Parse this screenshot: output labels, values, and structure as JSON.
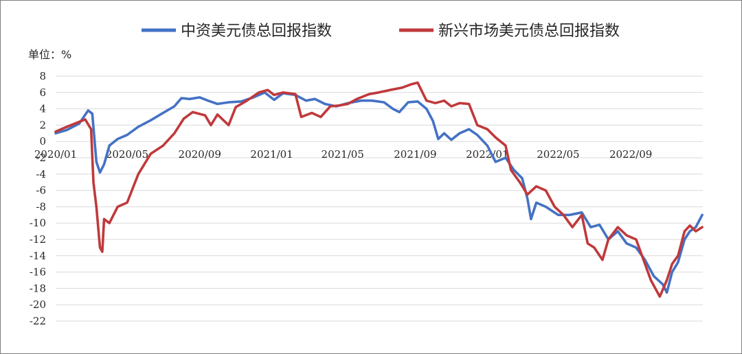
{
  "chart_data": {
    "type": "line",
    "unit_label": "单位：%",
    "ylim": [
      -22,
      8
    ],
    "yticks": [
      8,
      6,
      4,
      2,
      0,
      -2,
      -4,
      -6,
      -8,
      -10,
      -12,
      -14,
      -16,
      -18,
      -20,
      -22
    ],
    "x_tick_labels": [
      "2020/01",
      "2020/05",
      "2020/09",
      "2021/01",
      "2021/05",
      "2021/09",
      "2022/01",
      "2022/05",
      "2022/09"
    ],
    "x_range": [
      "2020-01",
      "2023-01"
    ],
    "grid": true,
    "legend_position": "top",
    "series": [
      {
        "name": "中资美元债总回报指数",
        "color": "#4472C4",
        "points": [
          [
            "2020-01-01",
            1.0
          ],
          [
            "2020-01-20",
            1.4
          ],
          [
            "2020-02-10",
            2.2
          ],
          [
            "2020-02-25",
            3.8
          ],
          [
            "2020-03-03",
            3.4
          ],
          [
            "2020-03-10",
            -2.5
          ],
          [
            "2020-03-16",
            -3.8
          ],
          [
            "2020-03-23",
            -2.8
          ],
          [
            "2020-04-01",
            -0.5
          ],
          [
            "2020-04-15",
            0.3
          ],
          [
            "2020-05-01",
            0.8
          ],
          [
            "2020-05-20",
            1.8
          ],
          [
            "2020-06-10",
            2.6
          ],
          [
            "2020-07-01",
            3.5
          ],
          [
            "2020-07-20",
            4.3
          ],
          [
            "2020-08-01",
            5.3
          ],
          [
            "2020-08-15",
            5.2
          ],
          [
            "2020-09-01",
            5.4
          ],
          [
            "2020-09-15",
            5.0
          ],
          [
            "2020-10-01",
            4.6
          ],
          [
            "2020-10-20",
            4.8
          ],
          [
            "2020-11-10",
            4.9
          ],
          [
            "2020-12-01",
            5.4
          ],
          [
            "2020-12-20",
            6.0
          ],
          [
            "2021-01-05",
            5.1
          ],
          [
            "2021-01-20",
            5.9
          ],
          [
            "2021-02-10",
            5.7
          ],
          [
            "2021-02-28",
            5.0
          ],
          [
            "2021-03-15",
            5.2
          ],
          [
            "2021-04-01",
            4.6
          ],
          [
            "2021-04-20",
            4.3
          ],
          [
            "2021-05-10",
            4.7
          ],
          [
            "2021-06-01",
            5.0
          ],
          [
            "2021-06-20",
            5.0
          ],
          [
            "2021-07-10",
            4.8
          ],
          [
            "2021-07-25",
            4.0
          ],
          [
            "2021-08-05",
            3.6
          ],
          [
            "2021-08-20",
            4.8
          ],
          [
            "2021-09-05",
            4.9
          ],
          [
            "2021-09-20",
            4.0
          ],
          [
            "2021-10-01",
            2.5
          ],
          [
            "2021-10-10",
            0.3
          ],
          [
            "2021-10-20",
            1.0
          ],
          [
            "2021-11-01",
            0.2
          ],
          [
            "2021-11-15",
            1.0
          ],
          [
            "2021-12-01",
            1.5
          ],
          [
            "2021-12-15",
            0.8
          ],
          [
            "2022-01-01",
            -0.5
          ],
          [
            "2022-01-15",
            -2.5
          ],
          [
            "2022-02-01",
            -2.0
          ],
          [
            "2022-02-15",
            -3.5
          ],
          [
            "2022-03-01",
            -4.5
          ],
          [
            "2022-03-10",
            -7.0
          ],
          [
            "2022-03-16",
            -9.5
          ],
          [
            "2022-03-25",
            -7.5
          ],
          [
            "2022-04-10",
            -8.0
          ],
          [
            "2022-05-01",
            -9.0
          ],
          [
            "2022-05-20",
            -9.0
          ],
          [
            "2022-06-10",
            -8.7
          ],
          [
            "2022-06-25",
            -10.5
          ],
          [
            "2022-07-10",
            -10.2
          ],
          [
            "2022-07-25",
            -12.0
          ],
          [
            "2022-08-10",
            -11.0
          ],
          [
            "2022-08-25",
            -12.5
          ],
          [
            "2022-09-10",
            -13.0
          ],
          [
            "2022-09-25",
            -14.5
          ],
          [
            "2022-10-10",
            -16.5
          ],
          [
            "2022-10-25",
            -17.5
          ],
          [
            "2022-11-01",
            -18.5
          ],
          [
            "2022-11-10",
            -16.0
          ],
          [
            "2022-11-20",
            -14.8
          ],
          [
            "2022-12-01",
            -12.0
          ],
          [
            "2022-12-10",
            -11.0
          ],
          [
            "2022-12-20",
            -10.5
          ],
          [
            "2022-12-31",
            -9.0
          ]
        ]
      },
      {
        "name": "新兴市场美元债总回报指数",
        "color": "#C0393B",
        "points": [
          [
            "2020-01-01",
            1.2
          ],
          [
            "2020-01-20",
            1.8
          ],
          [
            "2020-02-10",
            2.4
          ],
          [
            "2020-02-20",
            2.7
          ],
          [
            "2020-03-01",
            1.5
          ],
          [
            "2020-03-05",
            -5.0
          ],
          [
            "2020-03-10",
            -8.0
          ],
          [
            "2020-03-16",
            -13.0
          ],
          [
            "2020-03-20",
            -13.5
          ],
          [
            "2020-03-23",
            -9.5
          ],
          [
            "2020-04-01",
            -10.0
          ],
          [
            "2020-04-15",
            -8.0
          ],
          [
            "2020-05-01",
            -7.5
          ],
          [
            "2020-05-20",
            -4.0
          ],
          [
            "2020-06-10",
            -1.5
          ],
          [
            "2020-07-01",
            -0.5
          ],
          [
            "2020-07-20",
            1.0
          ],
          [
            "2020-08-05",
            2.8
          ],
          [
            "2020-08-20",
            3.6
          ],
          [
            "2020-09-10",
            3.2
          ],
          [
            "2020-09-20",
            2.0
          ],
          [
            "2020-10-01",
            3.3
          ],
          [
            "2020-10-20",
            2.0
          ],
          [
            "2020-11-01",
            4.2
          ],
          [
            "2020-11-20",
            5.0
          ],
          [
            "2020-12-10",
            6.0
          ],
          [
            "2020-12-25",
            6.3
          ],
          [
            "2021-01-05",
            5.7
          ],
          [
            "2021-01-20",
            6.0
          ],
          [
            "2021-02-10",
            5.8
          ],
          [
            "2021-02-20",
            3.0
          ],
          [
            "2021-03-10",
            3.5
          ],
          [
            "2021-03-25",
            3.0
          ],
          [
            "2021-04-10",
            4.3
          ],
          [
            "2021-04-25",
            4.4
          ],
          [
            "2021-05-10",
            4.6
          ],
          [
            "2021-05-25",
            5.2
          ],
          [
            "2021-06-15",
            5.8
          ],
          [
            "2021-07-01",
            6.0
          ],
          [
            "2021-07-20",
            6.3
          ],
          [
            "2021-08-10",
            6.6
          ],
          [
            "2021-08-25",
            7.0
          ],
          [
            "2021-09-05",
            7.2
          ],
          [
            "2021-09-20",
            5.0
          ],
          [
            "2021-10-05",
            4.7
          ],
          [
            "2021-10-20",
            5.0
          ],
          [
            "2021-11-01",
            4.3
          ],
          [
            "2021-11-15",
            4.7
          ],
          [
            "2021-12-01",
            4.6
          ],
          [
            "2021-12-15",
            2.0
          ],
          [
            "2022-01-01",
            1.5
          ],
          [
            "2022-01-15",
            0.5
          ],
          [
            "2022-02-01",
            -0.5
          ],
          [
            "2022-02-10",
            -3.5
          ],
          [
            "2022-02-25",
            -5.0
          ],
          [
            "2022-03-10",
            -6.5
          ],
          [
            "2022-03-25",
            -5.5
          ],
          [
            "2022-04-10",
            -6.0
          ],
          [
            "2022-04-25",
            -8.0
          ],
          [
            "2022-05-10",
            -9.0
          ],
          [
            "2022-05-25",
            -10.5
          ],
          [
            "2022-06-10",
            -9.0
          ],
          [
            "2022-06-20",
            -12.5
          ],
          [
            "2022-07-01",
            -13.0
          ],
          [
            "2022-07-15",
            -14.5
          ],
          [
            "2022-07-25",
            -12.0
          ],
          [
            "2022-08-10",
            -10.5
          ],
          [
            "2022-08-25",
            -11.5
          ],
          [
            "2022-09-10",
            -12.0
          ],
          [
            "2022-09-20",
            -14.0
          ],
          [
            "2022-10-05",
            -17.0
          ],
          [
            "2022-10-20",
            -19.0
          ],
          [
            "2022-11-01",
            -17.0
          ],
          [
            "2022-11-10",
            -15.0
          ],
          [
            "2022-11-20",
            -14.0
          ],
          [
            "2022-12-01",
            -11.0
          ],
          [
            "2022-12-10",
            -10.3
          ],
          [
            "2022-12-20",
            -11.0
          ],
          [
            "2022-12-31",
            -10.5
          ]
        ]
      }
    ]
  }
}
